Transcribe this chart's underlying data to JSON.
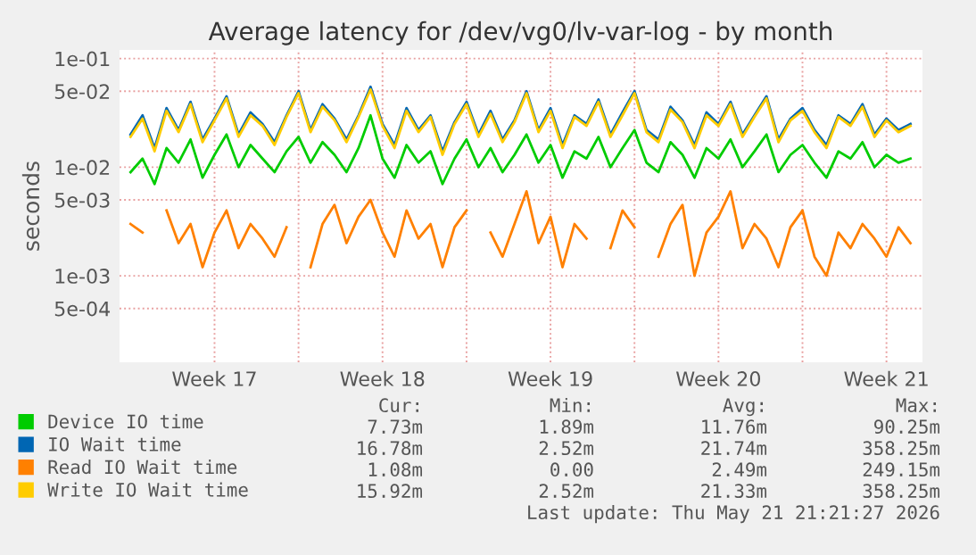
{
  "chart_data": {
    "type": "line",
    "title": "Average latency for /dev/vg0/lv-var-log - by month",
    "ylabel": "seconds",
    "log": "y",
    "x": [
      "2026-04-20T00:00",
      "2026-04-20T12:00",
      "2026-04-21T00:00",
      "2026-04-21T12:00",
      "2026-04-22T00:00",
      "2026-04-22T12:00",
      "2026-04-23T00:00",
      "2026-04-23T12:00",
      "2026-04-24T00:00",
      "2026-04-24T12:00",
      "2026-04-25T00:00",
      "2026-04-25T12:00",
      "2026-04-26T00:00",
      "2026-04-26T12:00",
      "2026-04-27T00:00",
      "2026-04-27T12:00",
      "2026-04-28T00:00",
      "2026-04-28T12:00",
      "2026-04-29T00:00",
      "2026-04-29T12:00",
      "2026-04-30T00:00",
      "2026-04-30T12:00",
      "2026-05-01T00:00",
      "2026-05-01T12:00",
      "2026-05-02T00:00",
      "2026-05-02T12:00",
      "2026-05-03T00:00",
      "2026-05-03T12:00",
      "2026-05-04T00:00",
      "2026-05-04T12:00",
      "2026-05-05T00:00",
      "2026-05-05T12:00",
      "2026-05-06T00:00",
      "2026-05-06T12:00",
      "2026-05-07T00:00",
      "2026-05-07T12:00",
      "2026-05-08T00:00",
      "2026-05-08T12:00",
      "2026-05-09T00:00",
      "2026-05-09T12:00",
      "2026-05-10T00:00",
      "2026-05-10T12:00",
      "2026-05-11T00:00",
      "2026-05-11T12:00",
      "2026-05-12T00:00",
      "2026-05-12T12:00",
      "2026-05-13T00:00",
      "2026-05-13T12:00",
      "2026-05-14T00:00",
      "2026-05-14T12:00",
      "2026-05-15T00:00",
      "2026-05-15T12:00",
      "2026-05-16T00:00",
      "2026-05-16T12:00",
      "2026-05-17T00:00",
      "2026-05-17T12:00",
      "2026-05-18T00:00",
      "2026-05-18T12:00",
      "2026-05-19T00:00",
      "2026-05-19T12:00",
      "2026-05-20T00:00",
      "2026-05-20T12:00",
      "2026-05-21T00:00",
      "2026-05-21T12:00",
      "2026-05-22T00:00",
      "2026-05-22T12:00"
    ],
    "series": [
      {
        "name": "Device IO time",
        "color": "#00cc00",
        "values": [
          0.009,
          0.012,
          0.007,
          0.015,
          0.011,
          0.018,
          0.008,
          0.013,
          0.02,
          0.01,
          0.016,
          0.012,
          0.009,
          0.014,
          0.019,
          0.011,
          0.017,
          0.013,
          0.009,
          0.015,
          0.03,
          0.012,
          0.008,
          0.016,
          0.011,
          0.014,
          0.007,
          0.012,
          0.018,
          0.01,
          0.015,
          0.009,
          0.013,
          0.02,
          0.011,
          0.016,
          0.008,
          0.014,
          0.012,
          0.019,
          0.01,
          0.015,
          0.022,
          0.011,
          0.009,
          0.017,
          0.013,
          0.008,
          0.015,
          0.012,
          0.018,
          0.01,
          0.014,
          0.02,
          0.009,
          0.013,
          0.016,
          0.011,
          0.008,
          0.014,
          0.012,
          0.017,
          0.01,
          0.013,
          0.011,
          0.012
        ]
      },
      {
        "name": "IO Wait time",
        "color": "#0066b3",
        "values": [
          0.02,
          0.03,
          0.015,
          0.035,
          0.022,
          0.04,
          0.018,
          0.028,
          0.045,
          0.02,
          0.032,
          0.025,
          0.017,
          0.03,
          0.05,
          0.022,
          0.038,
          0.028,
          0.018,
          0.03,
          0.055,
          0.025,
          0.016,
          0.035,
          0.022,
          0.03,
          0.014,
          0.026,
          0.04,
          0.02,
          0.033,
          0.018,
          0.027,
          0.05,
          0.022,
          0.035,
          0.016,
          0.03,
          0.025,
          0.042,
          0.02,
          0.032,
          0.05,
          0.022,
          0.018,
          0.036,
          0.027,
          0.016,
          0.032,
          0.025,
          0.04,
          0.02,
          0.03,
          0.045,
          0.018,
          0.028,
          0.035,
          0.022,
          0.016,
          0.03,
          0.025,
          0.038,
          0.02,
          0.028,
          0.022,
          0.025
        ]
      },
      {
        "name": "Read IO Wait time",
        "color": "#ff8000",
        "values": [
          0.003,
          0.0025,
          null,
          0.004,
          0.002,
          0.003,
          0.0012,
          0.0025,
          0.004,
          0.0018,
          0.003,
          0.0022,
          0.0015,
          0.0028,
          null,
          0.0012,
          0.003,
          0.0045,
          0.002,
          0.0035,
          0.005,
          0.0025,
          0.0015,
          0.004,
          0.0022,
          0.003,
          0.0012,
          0.0028,
          0.004,
          null,
          0.0025,
          0.0015,
          0.003,
          0.006,
          0.002,
          0.0035,
          0.0012,
          0.003,
          0.0022,
          null,
          0.0018,
          0.004,
          0.0028,
          null,
          0.0015,
          0.003,
          0.0045,
          0.001,
          0.0025,
          0.0035,
          0.006,
          0.0018,
          0.003,
          0.0022,
          0.0012,
          0.0028,
          0.004,
          0.0015,
          0.001,
          0.0025,
          0.0018,
          0.003,
          0.0022,
          0.0015,
          0.0028,
          0.002
        ]
      },
      {
        "name": "Write IO Wait time",
        "color": "#ffcc00",
        "values": [
          0.019,
          0.028,
          0.014,
          0.033,
          0.021,
          0.038,
          0.017,
          0.027,
          0.043,
          0.019,
          0.03,
          0.024,
          0.016,
          0.029,
          0.048,
          0.021,
          0.036,
          0.027,
          0.017,
          0.029,
          0.052,
          0.024,
          0.015,
          0.033,
          0.021,
          0.029,
          0.013,
          0.025,
          0.038,
          0.019,
          0.031,
          0.017,
          0.026,
          0.048,
          0.021,
          0.033,
          0.015,
          0.029,
          0.024,
          0.04,
          0.019,
          0.03,
          0.048,
          0.021,
          0.017,
          0.034,
          0.026,
          0.015,
          0.03,
          0.024,
          0.038,
          0.019,
          0.029,
          0.043,
          0.017,
          0.027,
          0.033,
          0.021,
          0.015,
          0.029,
          0.024,
          0.036,
          0.019,
          0.027,
          0.021,
          0.024
        ]
      }
    ],
    "xlim": [
      "2026-04-19T13:00",
      "2026-05-23T00:00"
    ],
    "xticks": [
      {
        "value": "2026-04-23T12:00",
        "label": "Week 17"
      },
      {
        "value": "2026-04-27T00:00",
        "label": null
      },
      {
        "value": "2026-04-30T12:00",
        "label": "Week 18"
      },
      {
        "value": "2026-05-04T00:00",
        "label": null
      },
      {
        "value": "2026-05-07T12:00",
        "label": "Week 19"
      },
      {
        "value": "2026-05-11T00:00",
        "label": null
      },
      {
        "value": "2026-05-14T12:00",
        "label": "Week 20"
      },
      {
        "value": "2026-05-18T00:00",
        "label": null
      },
      {
        "value": "2026-05-21T12:00",
        "label": "Week 21"
      }
    ],
    "ylim": [
      0.00016,
      0.12
    ],
    "yticks": [
      {
        "value": 0.1,
        "label": "1e-01"
      },
      {
        "value": 0.05,
        "label": "5e-02"
      },
      {
        "value": 0.01,
        "label": "1e-02"
      },
      {
        "value": 0.005,
        "label": "5e-03"
      },
      {
        "value": 0.001,
        "label": "1e-03"
      },
      {
        "value": 0.0005,
        "label": "5e-04"
      }
    ],
    "grid": true,
    "legend": "bottom",
    "line_style": "solid",
    "marker": "none",
    "annotations": [
      "Cur:",
      "Min:",
      "Avg:",
      "Max:",
      "7.73m",
      "1.89m",
      "11.76m",
      "90.25m",
      "16.78m",
      "2.52m",
      "21.74m",
      "358.25m",
      "1.08m",
      "0.00",
      "2.49m",
      "249.15m",
      "15.92m",
      "2.52m",
      "21.33m",
      "358.25m",
      "Last update: Thu May 21 21:21:27 2026"
    ]
  }
}
